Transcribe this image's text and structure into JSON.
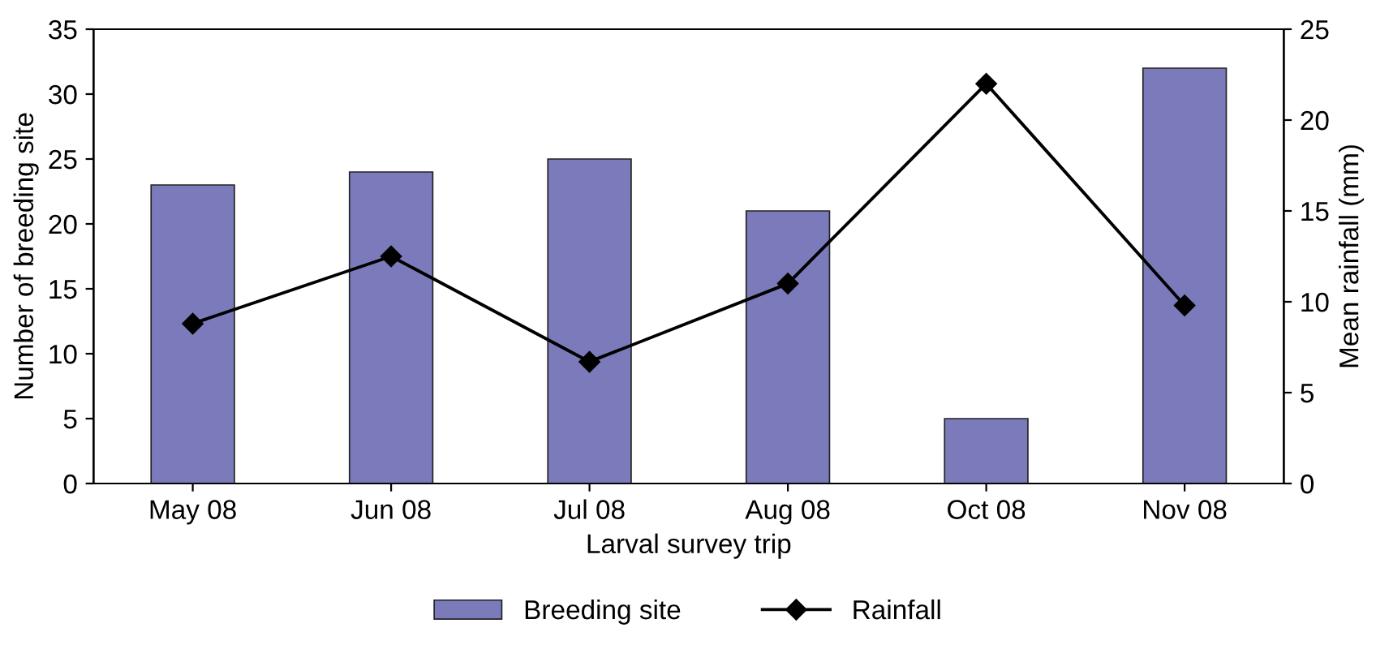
{
  "chart_data": {
    "type": "bar",
    "xlabel": "Larval survey trip",
    "ylabel": "Number of breeding site",
    "y2label": "Mean rainfall (mm)",
    "categories": [
      "May 08",
      "Jun 08",
      "Jul 08",
      "Aug 08",
      "Oct 08",
      "Nov 08"
    ],
    "series": [
      {
        "name": "Breeding site",
        "color": "#7b7bbb",
        "values": [
          23,
          24,
          25,
          21,
          5,
          32
        ]
      },
      {
        "name": "Rainfall",
        "type": "line",
        "axis": "y2",
        "color": "#000000",
        "marker": "diamond",
        "values": [
          8.8,
          12.5,
          6.7,
          11,
          22,
          9.8
        ]
      }
    ],
    "ylim": [
      0,
      35
    ],
    "yticks": [
      0,
      5,
      10,
      15,
      20,
      25,
      30,
      35
    ],
    "y2lim": [
      0,
      25
    ],
    "y2ticks": [
      0,
      5,
      10,
      15,
      20,
      25
    ],
    "legend": "bottom",
    "grid": false
  }
}
